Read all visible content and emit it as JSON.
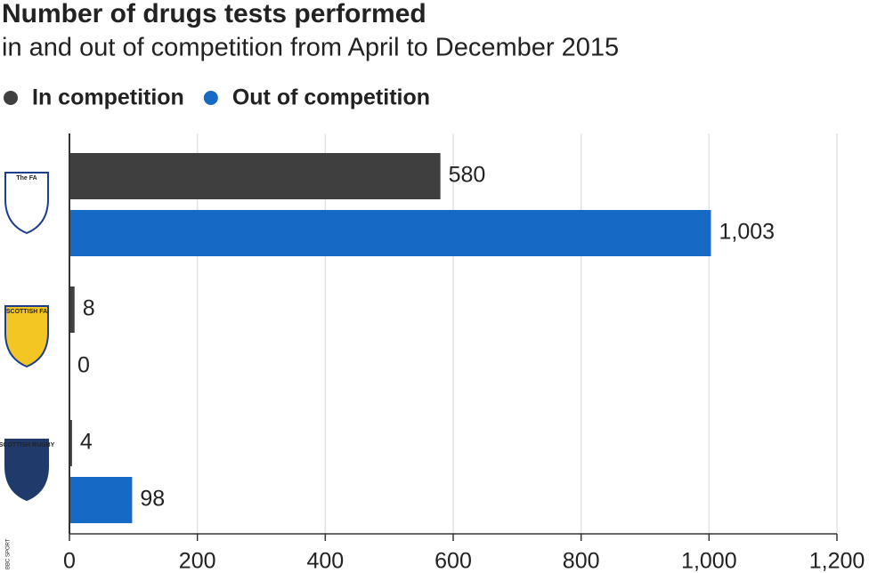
{
  "chart_data": {
    "type": "bar",
    "orientation": "horizontal",
    "title": "Number of drugs tests performed",
    "subtitle": "in and out of competition from April to December 2015",
    "categories": [
      "The FA",
      "SCOTTISH FA",
      "SCOTTISH RUGBY"
    ],
    "series": [
      {
        "name": "In competition",
        "color": "#3f3f3f",
        "values": [
          580,
          8,
          4
        ]
      },
      {
        "name": "Out of competition",
        "color": "#1669c4",
        "values": [
          1003,
          0,
          98
        ],
        "value_labels": [
          "1,003",
          "0",
          "98"
        ]
      }
    ],
    "xlim": [
      0,
      1200
    ],
    "xticks": [
      0,
      200,
      400,
      600,
      800,
      {
        "value": 1000,
        "label": "1,000"
      },
      {
        "value": 1200,
        "label": "1,200"
      }
    ],
    "grid": true,
    "legend": "top-left",
    "source": "BBC SPORT"
  }
}
